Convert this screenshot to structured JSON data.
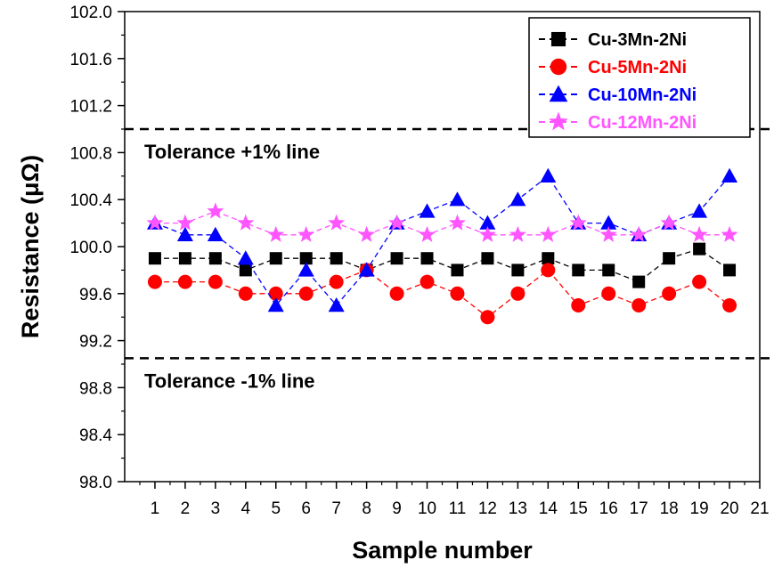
{
  "chart_data": {
    "type": "line",
    "xlabel": "Sample number",
    "ylabel": "Resistance (μΩ)",
    "xlim": [
      0,
      21
    ],
    "ylim": [
      98.0,
      102.0
    ],
    "x_ticks": [
      1,
      2,
      3,
      4,
      5,
      6,
      7,
      8,
      9,
      10,
      11,
      12,
      13,
      14,
      15,
      16,
      17,
      18,
      19,
      20,
      21
    ],
    "y_ticks": [
      "98.0",
      "98.4",
      "98.8",
      "99.2",
      "99.6",
      "100.0",
      "100.4",
      "100.8",
      "101.2",
      "101.6",
      "102.0"
    ],
    "grid": false,
    "legend_position": "top-right",
    "x": [
      1,
      2,
      3,
      4,
      5,
      6,
      7,
      8,
      9,
      10,
      11,
      12,
      13,
      14,
      15,
      16,
      17,
      18,
      19,
      20
    ],
    "series": [
      {
        "name": "Cu-3Mn-2Ni",
        "color": "#000000",
        "marker": "square",
        "values": [
          99.9,
          99.9,
          99.9,
          99.8,
          99.9,
          99.9,
          99.9,
          99.8,
          99.9,
          99.9,
          99.8,
          99.9,
          99.8,
          99.9,
          99.8,
          99.8,
          99.7,
          99.9,
          99.98,
          99.8
        ]
      },
      {
        "name": "Cu-5Mn-2Ni",
        "color": "#ff0000",
        "marker": "circle",
        "values": [
          99.7,
          99.7,
          99.7,
          99.6,
          99.6,
          99.6,
          99.7,
          99.8,
          99.6,
          99.7,
          99.6,
          99.4,
          99.6,
          99.8,
          99.5,
          99.6,
          99.5,
          99.6,
          99.7,
          99.5
        ]
      },
      {
        "name": "Cu-10Mn-2Ni",
        "color": "#0000ff",
        "marker": "triangle",
        "values": [
          100.2,
          100.1,
          100.1,
          99.9,
          99.5,
          99.8,
          99.5,
          99.8,
          100.2,
          100.3,
          100.4,
          100.2,
          100.4,
          100.6,
          100.2,
          100.2,
          100.1,
          100.2,
          100.3,
          100.6
        ]
      },
      {
        "name": "Cu-12Mn-2Ni",
        "color": "#ff55ff",
        "marker": "star",
        "values": [
          100.2,
          100.2,
          100.3,
          100.2,
          100.1,
          100.1,
          100.2,
          100.1,
          100.2,
          100.1,
          100.2,
          100.1,
          100.1,
          100.1,
          100.2,
          100.1,
          100.1,
          100.2,
          100.1,
          100.1
        ]
      }
    ],
    "reference_lines": [
      {
        "label": "Tolerance +1% line",
        "y": 101.0
      },
      {
        "label": "Tolerance -1% line",
        "y": 99.05
      }
    ]
  }
}
